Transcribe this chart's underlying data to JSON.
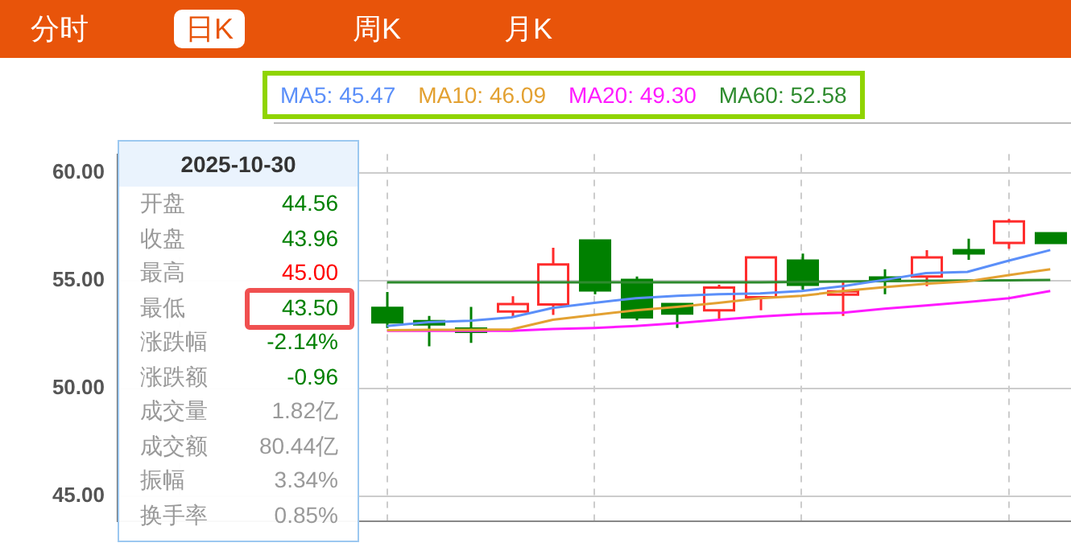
{
  "chart_data": {
    "type": "candlestick",
    "categories": [
      null,
      null,
      null,
      null,
      null,
      null,
      null,
      null,
      null,
      null,
      null,
      null,
      null,
      null,
      null,
      null,
      null,
      null,
      null,
      null,
      null,
      null,
      null
    ],
    "ohlc": [
      null,
      null,
      null,
      null,
      null,
      null,
      [
        53.74,
        54.48,
        52.81,
        53.07
      ],
      [
        53.12,
        53.37,
        51.96,
        52.99
      ],
      [
        52.78,
        53.79,
        52.12,
        52.72
      ],
      [
        53.57,
        54.28,
        53.3,
        53.92
      ],
      [
        53.9,
        56.53,
        53.41,
        55.75
      ],
      [
        56.86,
        56.86,
        54.37,
        54.55
      ],
      [
        55.04,
        55.19,
        53.16,
        53.3
      ],
      [
        53.92,
        53.92,
        52.81,
        53.48
      ],
      [
        53.63,
        54.81,
        53.19,
        54.68
      ],
      [
        54.23,
        56.08,
        53.63,
        56.08
      ],
      [
        55.93,
        56.26,
        54.59,
        54.81
      ],
      [
        54.46,
        54.97,
        53.37,
        54.5
      ],
      [
        55.15,
        55.53,
        54.37,
        55.01
      ],
      [
        55.19,
        56.42,
        54.75,
        56.08
      ],
      [
        56.42,
        56.95,
        55.97,
        56.3
      ],
      [
        56.75,
        57.86,
        56.48,
        57.75
      ],
      [
        57.2,
        57.2,
        56.75,
        56.75
      ]
    ],
    "series": [
      {
        "name": "MA5: 45.47",
        "type": "line",
        "color": "#5b8ff9",
        "values": [
          null,
          null,
          null,
          null,
          null,
          null,
          52.9,
          53.08,
          53.14,
          53.3,
          53.74,
          53.97,
          54.19,
          54.3,
          54.37,
          54.41,
          54.52,
          54.75,
          55.04,
          55.35,
          55.41,
          55.93,
          56.42
        ]
      },
      {
        "name": "MA10: 46.09",
        "type": "line",
        "color": "#e3a132",
        "values": [
          null,
          null,
          null,
          null,
          null,
          null,
          52.7,
          52.72,
          52.72,
          52.74,
          53.19,
          53.41,
          53.63,
          53.79,
          53.97,
          54.19,
          54.3,
          54.52,
          54.7,
          54.86,
          54.97,
          55.26,
          55.53
        ]
      },
      {
        "name": "MA20: 49.30",
        "type": "line",
        "color": "#ff1aff",
        "values": [
          null,
          null,
          null,
          null,
          null,
          null,
          52.68,
          52.68,
          52.68,
          52.68,
          52.76,
          52.81,
          52.9,
          53.03,
          53.19,
          53.34,
          53.45,
          53.52,
          53.7,
          53.85,
          54.01,
          54.19,
          54.52
        ]
      },
      {
        "name": "MA60: 52.58",
        "type": "line",
        "color": "#2e8b2e",
        "values": [
          null,
          null,
          null,
          null,
          null,
          null,
          54.92,
          54.92,
          54.92,
          54.92,
          54.92,
          54.92,
          54.92,
          54.92,
          54.92,
          54.92,
          54.94,
          54.96,
          54.98,
          55.0,
          55.01,
          55.02,
          55.04
        ]
      }
    ],
    "ylim": [
      43.83,
      60.87
    ],
    "yticks": [
      {
        "value": 45,
        "label": "45.00"
      },
      {
        "value": 50,
        "label": "50.00"
      },
      {
        "value": 55,
        "label": "55.00"
      },
      {
        "value": 60,
        "label": "60.00"
      }
    ],
    "grid": true,
    "legend": "top left",
    "tick_labels": "y",
    "marker": "none",
    "annotations": [
      "分时",
      "日K",
      "周K",
      "月K",
      "2025-10-30",
      "开盘",
      "44.56",
      "收盘",
      "43.96",
      "最高",
      "45.00",
      "最低",
      "43.50",
      "涨跌幅",
      "-2.14%",
      "涨跌额",
      "-0.96",
      "成交量",
      "1.82亿",
      "成交额",
      "80.44亿",
      "振幅",
      "3.34%",
      "换手率",
      "0.85%"
    ]
  }
}
